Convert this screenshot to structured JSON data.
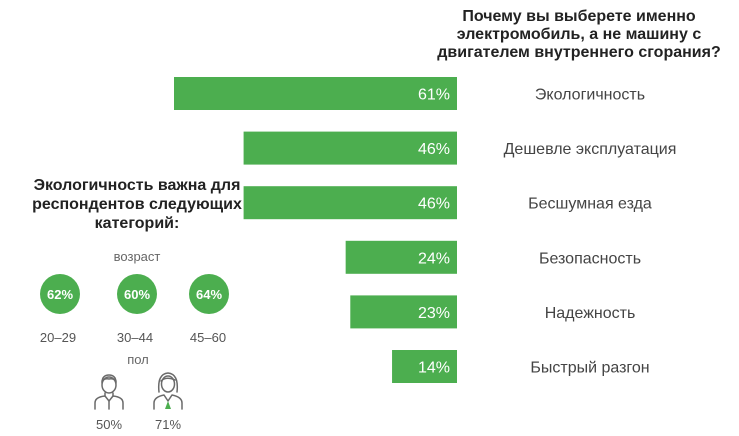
{
  "chart_data": {
    "type": "bar",
    "orientation": "horizontal",
    "title": "Почему вы выберете именно электромобиль, а не машину с двигателем внутреннего сгорания?",
    "categories": [
      "Экологичность",
      "Дешевле эксплуатация",
      "Бесшумная езда",
      "Безопасность",
      "Надежность",
      "Быстрый разгон"
    ],
    "values": [
      61,
      46,
      46,
      24,
      23,
      14
    ],
    "value_labels": [
      "61%",
      "46%",
      "46%",
      "24%",
      "23%",
      "14%"
    ],
    "xlim": [
      0,
      61
    ],
    "grid": false,
    "bar_color": "#4cae4f"
  },
  "side_panel": {
    "title": "Экологичность важна для респондентов следующих категорий:",
    "age_caption": "возраст",
    "age_groups": [
      {
        "value": "62%",
        "label": "20–29"
      },
      {
        "value": "60%",
        "label": "30–44"
      },
      {
        "value": "64%",
        "label": "45–60"
      }
    ],
    "gender_caption": "пол",
    "genders": [
      {
        "icon": "male-person-icon",
        "value": "50%"
      },
      {
        "icon": "female-person-icon",
        "value": "71%"
      }
    ]
  }
}
